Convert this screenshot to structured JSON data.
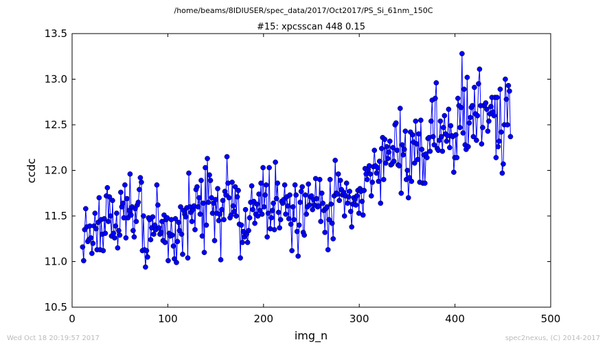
{
  "chart_data": {
    "type": "line",
    "suptitle": "/home/beams/8IDIUSER/spec_data/2017/Oct2017/PS_Si_61nm_150C",
    "title": "#15: xpcsscan 448 0.15",
    "xlabel": "img_n",
    "ylabel": "ccdc",
    "xlim": [
      0,
      500
    ],
    "ylim": [
      10.5,
      13.5
    ],
    "xticks": [
      "0",
      "100",
      "200",
      "300",
      "400",
      "500"
    ],
    "yticks": [
      "10.5",
      "11.0",
      "11.5",
      "12.0",
      "12.5",
      "13.0",
      "13.5"
    ],
    "grid": false,
    "legend": "none",
    "color": "#0000ff",
    "marker": "circle",
    "series": [
      {
        "x_start": 11,
        "x_end": 458,
        "y": [
          11.16,
          11.01,
          11.35,
          11.58,
          11.38,
          11.22,
          11.24,
          11.39,
          11.26,
          11.09,
          11.2,
          11.39,
          11.53,
          11.36,
          11.13,
          11.43,
          11.7,
          11.13,
          11.46,
          11.3,
          11.12,
          11.47,
          11.31,
          11.72,
          11.81,
          11.44,
          11.71,
          11.5,
          11.28,
          11.67,
          11.31,
          11.26,
          11.39,
          11.53,
          11.15,
          11.34,
          11.29,
          11.76,
          11.6,
          11.64,
          11.48,
          11.84,
          11.26,
          11.69,
          11.48,
          11.56,
          11.96,
          11.51,
          11.6,
          11.34,
          11.27,
          11.58,
          11.44,
          11.62,
          11.65,
          11.79,
          11.92,
          11.87,
          11.12,
          11.5,
          11.13,
          10.94,
          11.12,
          11.05,
          11.48,
          11.46,
          11.24,
          11.37,
          11.49,
          11.3,
          11.4,
          11.35,
          11.84,
          11.62,
          11.37,
          11.3,
          11.32,
          11.44,
          11.23,
          11.51,
          11.21,
          11.46,
          11.48,
          11.01,
          11.31,
          11.28,
          11.46,
          11.29,
          11.17,
          11.03,
          11.47,
          10.99,
          11.22,
          11.43,
          11.34,
          11.6,
          11.3,
          11.08,
          11.56,
          11.52,
          11.49,
          11.59,
          11.04,
          11.97,
          11.6,
          11.54,
          11.44,
          11.57,
          11.61,
          11.35,
          11.79,
          11.82,
          11.6,
          11.7,
          11.52,
          11.89,
          11.28,
          11.64,
          11.1,
          12.03,
          11.4,
          12.13,
          11.65,
          11.95,
          11.89,
          11.7,
          11.53,
          11.64,
          11.23,
          11.68,
          11.53,
          11.8,
          11.45,
          11.52,
          11.02,
          11.57,
          11.67,
          11.46,
          11.77,
          11.73,
          12.15,
          11.86,
          11.7,
          11.48,
          11.51,
          11.87,
          11.61,
          11.55,
          11.82,
          11.5,
          11.71,
          11.78,
          11.41,
          11.04,
          11.4,
          11.21,
          11.33,
          11.27,
          11.57,
          11.3,
          11.21,
          11.34,
          11.48,
          11.65,
          11.83,
          11.57,
          11.66,
          11.42,
          11.52,
          11.63,
          11.5,
          11.74,
          11.56,
          11.86,
          11.52,
          12.03,
          11.6,
          11.73,
          11.84,
          11.27,
          11.53,
          12.03,
          11.36,
          11.48,
          11.56,
          11.64,
          11.35,
          12.09,
          11.69,
          11.86,
          11.54,
          11.37,
          11.46,
          11.66,
          11.64,
          11.68,
          11.84,
          11.52,
          11.71,
          11.61,
          11.47,
          11.73,
          11.41,
          11.12,
          11.6,
          11.46,
          11.84,
          11.73,
          11.33,
          11.06,
          11.4,
          11.65,
          11.77,
          11.82,
          11.32,
          11.29,
          11.73,
          11.52,
          11.6,
          11.85,
          11.62,
          11.71,
          11.72,
          11.57,
          11.68,
          11.62,
          11.91,
          11.69,
          11.6,
          11.61,
          11.9,
          11.44,
          11.75,
          11.64,
          11.56,
          11.32,
          11.58,
          11.6,
          11.13,
          11.46,
          11.9,
          11.63,
          11.42,
          11.25,
          11.72,
          12.11,
          11.75,
          11.74,
          11.96,
          11.67,
          11.89,
          11.79,
          11.73,
          11.76,
          11.5,
          11.72,
          11.86,
          11.64,
          11.71,
          11.77,
          11.55,
          11.38,
          11.63,
          11.7,
          11.68,
          11.62,
          11.72,
          11.78,
          11.53,
          11.8,
          11.77,
          11.66,
          11.51,
          11.78,
          12.02,
          11.96,
          11.9,
          12.01,
          12.05,
          11.96,
          11.72,
          11.87,
          12.04,
          12.22,
          12.05,
          11.97,
          12.03,
          11.88,
          12.1,
          11.64,
          12.24,
          12.36,
          11.9,
          12.34,
          12.08,
          12.26,
          12.13,
          12.2,
          12.32,
          12.06,
          12.07,
          12.25,
          12.1,
          12.5,
          12.52,
          12.22,
          12.06,
          12.05,
          12.68,
          11.75,
          12.28,
          12.17,
          12.23,
          12.43,
          11.9,
          12.0,
          11.7,
          11.92,
          12.42,
          11.88,
          12.39,
          12.31,
          12.08,
          12.54,
          12.29,
          12.12,
          12.4,
          11.87,
          12.55,
          12.23,
          11.86,
          12.17,
          11.86,
          12.18,
          12.14,
          12.35,
          12.36,
          12.21,
          12.54,
          12.77,
          12.37,
          12.28,
          12.79,
          12.96,
          12.24,
          12.22,
          12.33,
          12.54,
          12.37,
          12.21,
          12.47,
          12.6,
          12.4,
          12.32,
          12.38,
          12.67,
          12.25,
          12.49,
          12.38,
          12.37,
          11.98,
          12.14,
          12.39,
          12.14,
          12.79,
          12.71,
          12.47,
          12.69,
          13.28,
          12.41,
          12.89,
          12.28,
          12.23,
          13.02,
          12.26,
          12.52,
          12.58,
          12.69,
          12.71,
          12.37,
          12.91,
          12.62,
          12.33,
          12.6,
          12.95,
          13.11,
          12.71,
          12.29,
          12.47,
          12.71,
          12.72,
          12.74,
          12.67,
          12.43,
          12.54,
          12.62,
          12.7,
          12.8,
          12.64,
          12.6,
          12.8,
          12.14,
          12.8,
          12.26,
          12.32,
          12.89,
          12.42,
          11.97,
          12.07,
          12.5,
          13.0,
          12.78,
          12.5,
          12.93,
          12.87,
          12.37
        ]
      }
    ]
  },
  "footer": {
    "left": "Wed Oct 18 20:19:57 2017",
    "right": "spec2nexus, (C) 2014-2017"
  }
}
